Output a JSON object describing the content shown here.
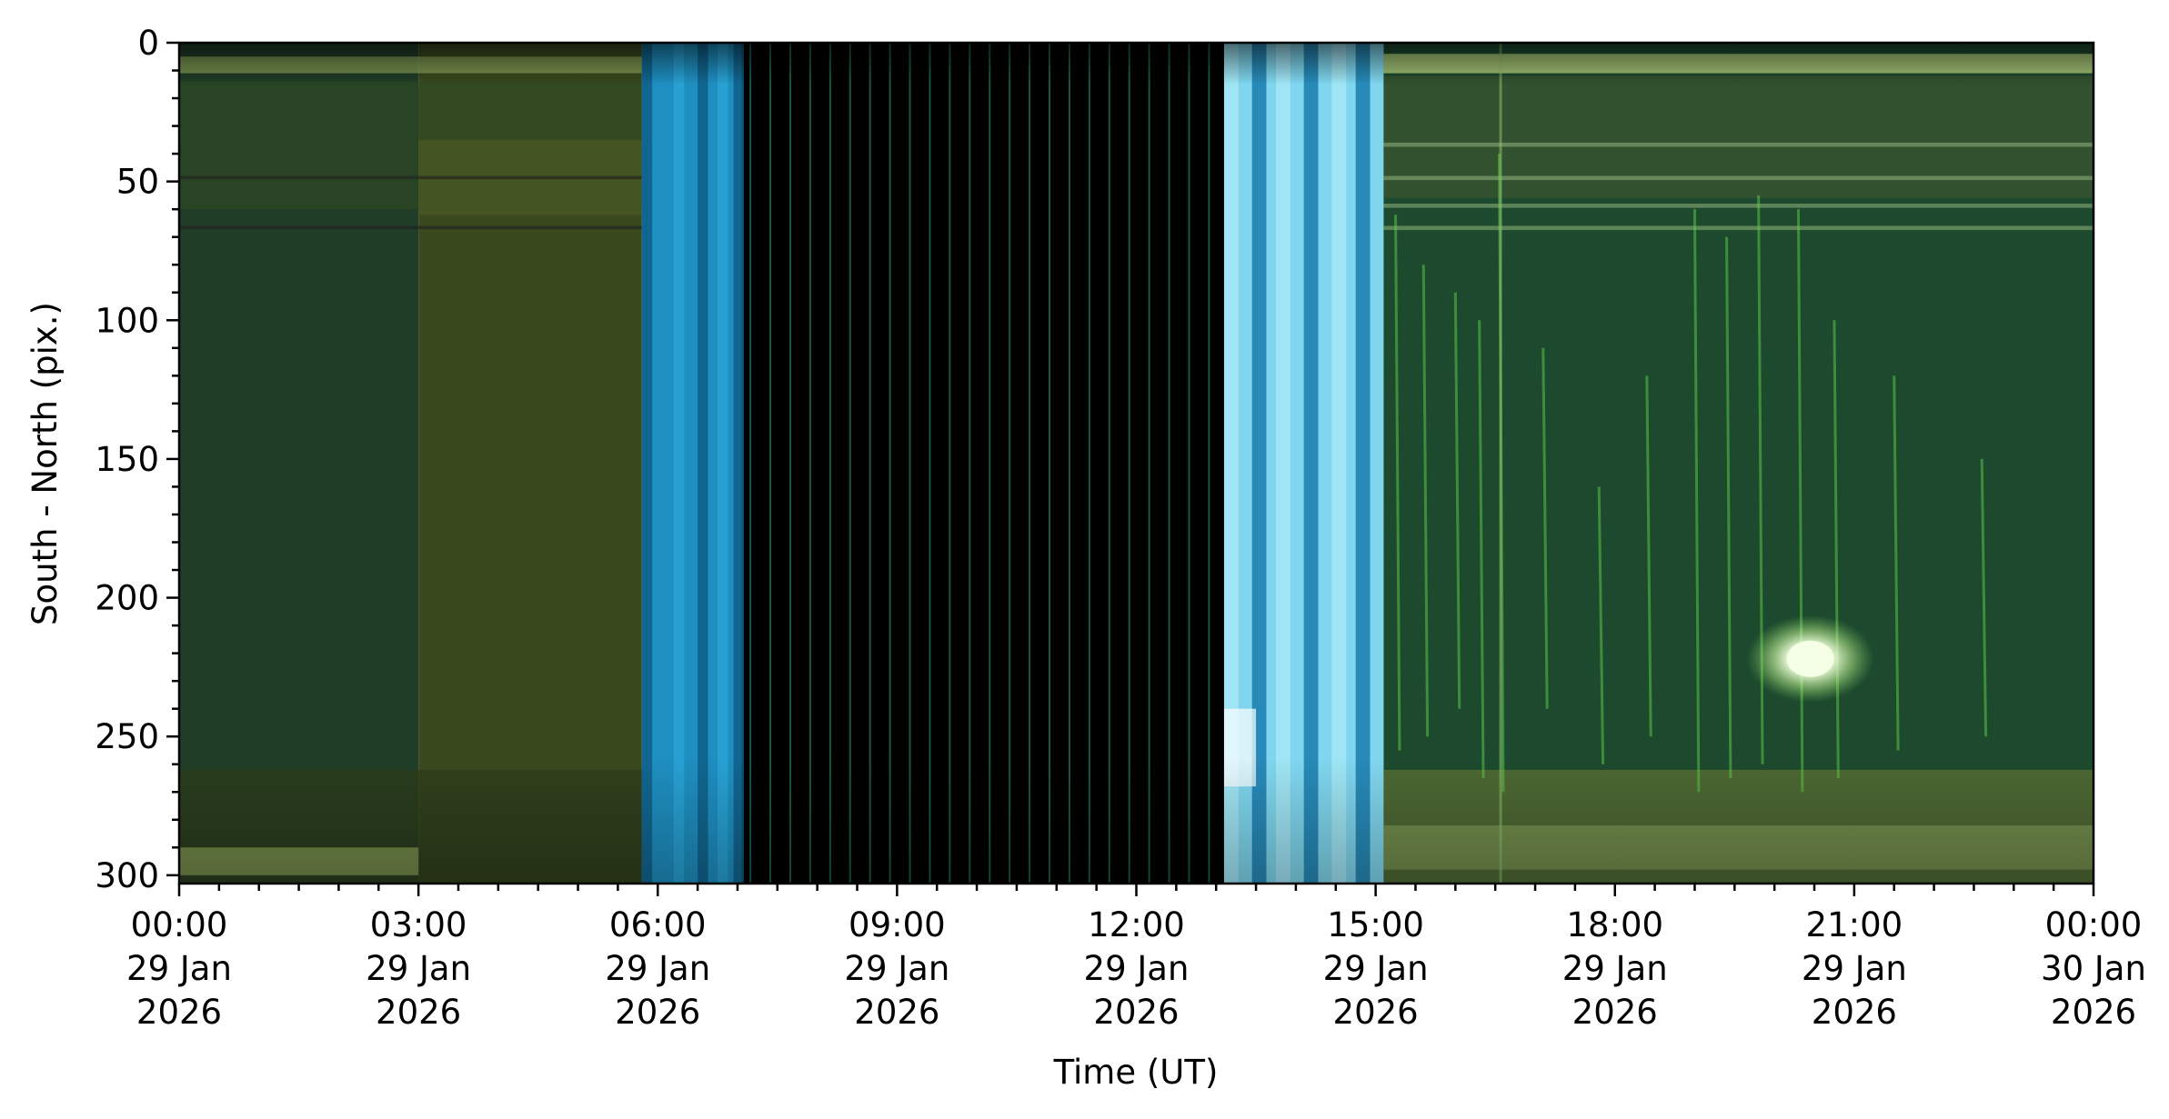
{
  "chart_data": {
    "type": "heatmap",
    "title": "",
    "xlabel": "Time (UT)",
    "ylabel": "South - North (pix.)",
    "x_ticks": [
      {
        "hour": 0,
        "time": "00:00",
        "date": "29 Jan",
        "year": "2026"
      },
      {
        "hour": 3,
        "time": "03:00",
        "date": "29 Jan",
        "year": "2026"
      },
      {
        "hour": 6,
        "time": "06:00",
        "date": "29 Jan",
        "year": "2026"
      },
      {
        "hour": 9,
        "time": "09:00",
        "date": "29 Jan",
        "year": "2026"
      },
      {
        "hour": 12,
        "time": "12:00",
        "date": "29 Jan",
        "year": "2026"
      },
      {
        "hour": 15,
        "time": "15:00",
        "date": "29 Jan",
        "year": "2026"
      },
      {
        "hour": 18,
        "time": "18:00",
        "date": "29 Jan",
        "year": "2026"
      },
      {
        "hour": 21,
        "time": "21:00",
        "date": "29 Jan",
        "year": "2026"
      },
      {
        "hour": 24,
        "time": "00:00",
        "date": "30 Jan",
        "year": "2026"
      }
    ],
    "y_ticks": [
      0,
      50,
      100,
      150,
      200,
      250,
      300
    ],
    "xlim_hours": [
      0,
      24
    ],
    "ylim": [
      303,
      0
    ],
    "y_inverted": true,
    "grid": false,
    "segments": [
      {
        "start": 0.0,
        "end": 3.0,
        "kind": "dark-green"
      },
      {
        "start": 3.0,
        "end": 5.8,
        "kind": "olive"
      },
      {
        "start": 5.8,
        "end": 7.05,
        "kind": "blue"
      },
      {
        "start": 7.05,
        "end": 13.1,
        "kind": "black"
      },
      {
        "start": 13.1,
        "end": 15.1,
        "kind": "bright-blue"
      },
      {
        "start": 15.1,
        "end": 24.0,
        "kind": "green"
      }
    ],
    "bright_spot": {
      "hour": 20.45,
      "pix": 222
    },
    "colors": {
      "dark_green": "#1f3d27",
      "olive": "#3a4a1e",
      "blue": "#1e8fc0",
      "bright_blue": "#7fd6ee",
      "black": "#000000",
      "green": "#1d4a2e",
      "band": "#8fa85a",
      "streak": "#5fd04a",
      "spot": "#f4ffe6"
    }
  }
}
